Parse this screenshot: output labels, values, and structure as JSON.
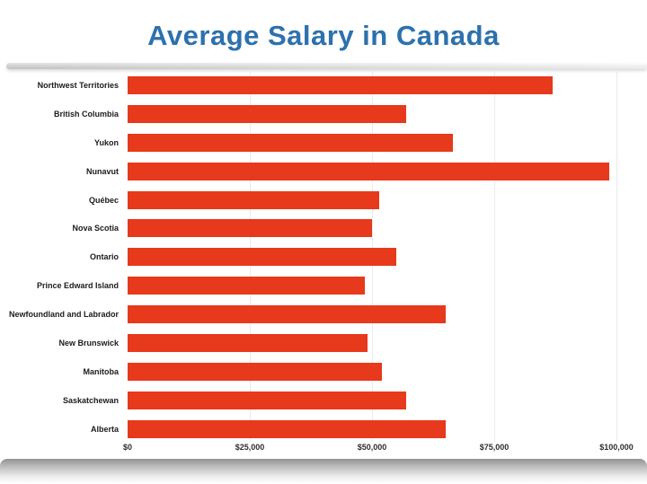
{
  "title": "Average Salary in Canada",
  "colors": {
    "title_text": "#2d71ae",
    "bar": "#e7391c",
    "category_label": "#1b1b1b",
    "tick_label": "#2e2e2e",
    "gridline": "#ebebeb",
    "background": "#ffffff"
  },
  "chart_data": {
    "type": "bar",
    "orientation": "horizontal",
    "title": "Average Salary in Canada",
    "categories": [
      "Northwest Territories",
      "British Columbia",
      "Yukon",
      "Nunavut",
      "Québec",
      "Nova Scotia",
      "Ontario",
      "Prince Edward Island",
      "Newfoundland and Labrador",
      "New Brunswick",
      "Manitoba",
      "Saskatchewan",
      "Alberta"
    ],
    "values": [
      87000,
      57000,
      66500,
      98500,
      51500,
      50000,
      55000,
      48500,
      65000,
      49000,
      52000,
      57000,
      65000
    ],
    "xlabel": "",
    "ylabel": "",
    "xlim": [
      0,
      100000
    ],
    "x_ticks": [
      "$0",
      "$25,000",
      "$50,000",
      "$75,000",
      "$100,000"
    ],
    "x_tick_values": [
      0,
      25000,
      50000,
      75000,
      100000
    ],
    "grid": true,
    "legend": false
  }
}
